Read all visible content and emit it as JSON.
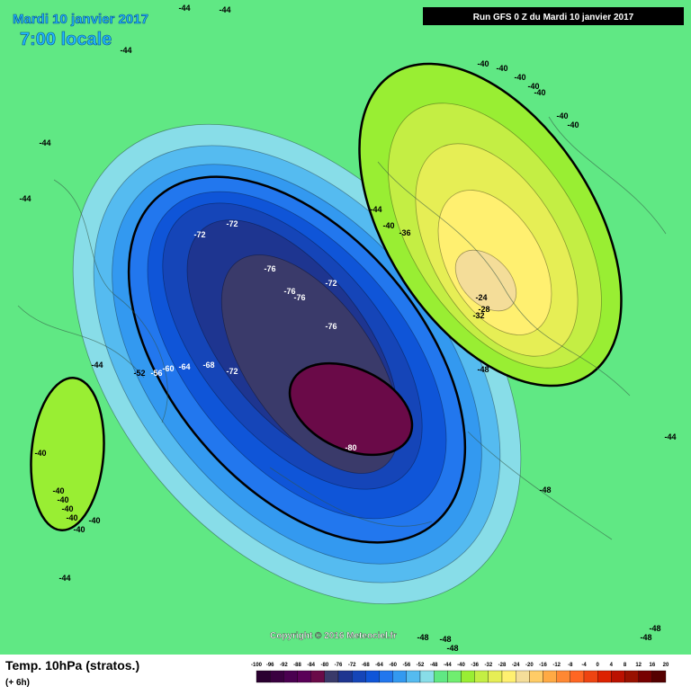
{
  "header": {
    "date": "Mardi 10 janvier 2017",
    "time": "7:00 locale",
    "run": "Run GFS 0 Z du Mardi 10 janvier 2017"
  },
  "map": {
    "contour_labels": [
      -44,
      -44,
      -44,
      -44,
      -44,
      -44,
      -44,
      -44,
      -44,
      -40,
      -40,
      -40,
      -40,
      -40,
      -40,
      -40,
      -40,
      -36,
      -72,
      -72,
      -76,
      -76,
      -76,
      -72,
      -76,
      -72,
      -68,
      -64,
      -60,
      -56,
      -52,
      -80,
      -24,
      -28,
      -32,
      -48,
      -48,
      -48,
      -48,
      -48,
      -48,
      -48,
      -40,
      -40,
      -40,
      -40,
      -40,
      -40,
      -40
    ]
  },
  "colorbar": {
    "ticks": [
      -100,
      -96,
      -92,
      -88,
      -84,
      -80,
      -76,
      -72,
      -68,
      -64,
      -60,
      -56,
      -52,
      -48,
      -44,
      -40,
      -36,
      -32,
      -28,
      -24,
      -20,
      -16,
      -12,
      -8,
      -4,
      0,
      4,
      8,
      12,
      16,
      20
    ],
    "colors": [
      "#2a0030",
      "#3a0040",
      "#4a0050",
      "#5a0058",
      "#6a0a48",
      "#3a3a6a",
      "#1e3590",
      "#1545b8",
      "#0f55d8",
      "#2277ee",
      "#3399f0",
      "#55bbf0",
      "#88dde8",
      "#60e884",
      "#70ee70",
      "#99ee33",
      "#c4ee44",
      "#e6ee55",
      "#fff070",
      "#f4dd99",
      "#ffcc66",
      "#ffaa44",
      "#ff8833",
      "#ff6622",
      "#ee4411",
      "#dd2200",
      "#bb1100",
      "#991100",
      "#770000",
      "#550000"
    ]
  },
  "footer": {
    "copyright": "Copyright © 2016 Meteociel.fr",
    "field": "Temp. 10hPa (stratos.)",
    "lead": "(+ 6h)"
  }
}
